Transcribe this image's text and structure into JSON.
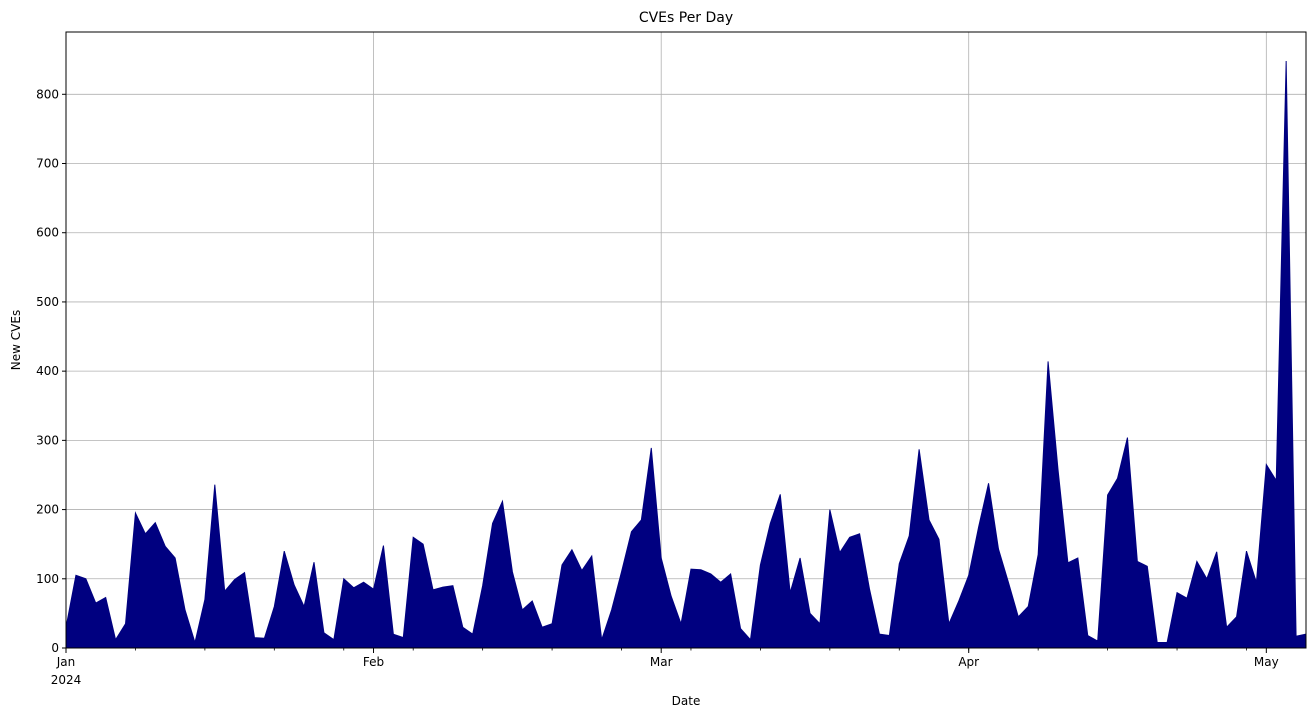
{
  "chart_data": {
    "type": "area",
    "title": "CVEs Per Day",
    "xlabel": "Date",
    "ylabel": "New CVEs",
    "x_start": "2024-01-01",
    "x_end": "2024-05-05",
    "ylim": [
      0,
      890
    ],
    "grid": true,
    "color": "#000080",
    "y_ticks": [
      0,
      100,
      200,
      300,
      400,
      500,
      600,
      700,
      800
    ],
    "x_major_ticks": [
      {
        "date": "2024-01-01",
        "label": "Jan",
        "sublabel": "2024"
      },
      {
        "date": "2024-02-01",
        "label": "Feb",
        "sublabel": ""
      },
      {
        "date": "2024-03-01",
        "label": "Mar",
        "sublabel": ""
      },
      {
        "date": "2024-04-01",
        "label": "Apr",
        "sublabel": ""
      },
      {
        "date": "2024-05-01",
        "label": "May",
        "sublabel": ""
      }
    ],
    "values": [
      30,
      105,
      100,
      65,
      73,
      12,
      35,
      195,
      165,
      181,
      147,
      130,
      55,
      8,
      70,
      236,
      82,
      99,
      109,
      15,
      14,
      60,
      140,
      91,
      60,
      124,
      22,
      12,
      100,
      87,
      95,
      85,
      148,
      20,
      15,
      160,
      150,
      84,
      88,
      90,
      30,
      20,
      90,
      180,
      212,
      110,
      55,
      68,
      30,
      35,
      120,
      142,
      112,
      133,
      12,
      55,
      110,
      168,
      185,
      289,
      130,
      75,
      35,
      114,
      113,
      107,
      95,
      107,
      28,
      12,
      120,
      180,
      222,
      80,
      130,
      50,
      35,
      200,
      138,
      160,
      165,
      85,
      20,
      18,
      122,
      162,
      287,
      185,
      157,
      35,
      68,
      105,
      175,
      238,
      143,
      95,
      45,
      60,
      135,
      414,
      258,
      123,
      130,
      18,
      10,
      221,
      245,
      304,
      125,
      118,
      8,
      8,
      80,
      72,
      125,
      100,
      139,
      30,
      45,
      140,
      95,
      265,
      242,
      848,
      17,
      20
    ]
  }
}
